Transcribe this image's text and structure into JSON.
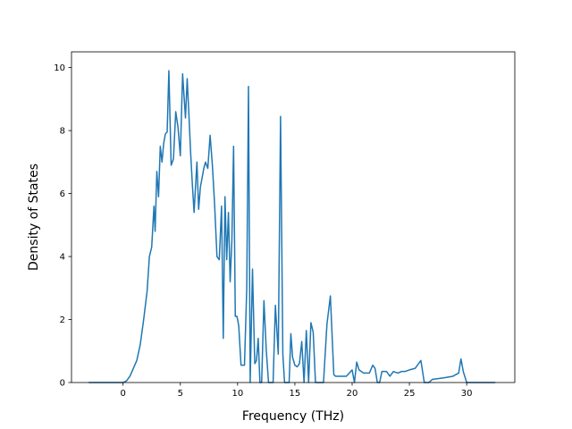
{
  "chart_data": {
    "type": "line",
    "title": "",
    "xlabel": "Frequency (THz)",
    "ylabel": "Density of States",
    "xlim": [
      -4.5,
      34.2
    ],
    "ylim": [
      0,
      10.5
    ],
    "xticks": [
      0,
      5,
      10,
      15,
      20,
      25,
      30
    ],
    "yticks": [
      0,
      2,
      4,
      6,
      8,
      10
    ],
    "grid": false,
    "legend": "none",
    "series": [
      {
        "color": "#1f77b4",
        "x": [
          -3.0,
          -2.0,
          -1.0,
          0.0,
          0.3,
          0.6,
          0.9,
          1.2,
          1.5,
          1.8,
          2.1,
          2.3,
          2.5,
          2.7,
          2.8,
          2.95,
          3.1,
          3.25,
          3.4,
          3.55,
          3.7,
          3.85,
          4.0,
          4.2,
          4.4,
          4.6,
          4.8,
          5.0,
          5.2,
          5.45,
          5.6,
          5.75,
          5.9,
          6.05,
          6.2,
          6.45,
          6.6,
          6.75,
          6.9,
          7.05,
          7.2,
          7.4,
          7.6,
          7.8,
          8.0,
          8.2,
          8.4,
          8.6,
          8.75,
          8.9,
          9.05,
          9.2,
          9.35,
          9.5,
          9.65,
          9.8,
          9.95,
          10.1,
          10.3,
          10.6,
          10.8,
          10.95,
          11.1,
          11.3,
          11.5,
          11.65,
          11.8,
          11.95,
          12.1,
          12.3,
          12.5,
          12.7,
          12.9,
          13.1,
          13.3,
          13.55,
          13.75,
          13.95,
          14.1,
          14.3,
          14.5,
          14.65,
          14.8,
          15.0,
          15.2,
          15.4,
          15.6,
          15.8,
          16.0,
          16.2,
          16.4,
          16.6,
          16.8,
          17.0,
          17.2,
          17.5,
          17.8,
          18.1,
          18.4,
          18.55,
          18.7,
          19.0,
          19.5,
          20.0,
          20.2,
          20.4,
          20.6,
          20.8,
          21.0,
          21.5,
          21.8,
          22.0,
          22.2,
          22.4,
          22.6,
          22.8,
          23.0,
          23.3,
          23.6,
          24.0,
          24.3,
          24.6,
          25.0,
          25.5,
          26.0,
          26.3,
          26.5,
          26.7,
          27.0,
          28.0,
          28.8,
          29.3,
          29.5,
          29.7,
          30.0,
          32.5
        ],
        "y": [
          0,
          0,
          0,
          0,
          0.05,
          0.2,
          0.45,
          0.7,
          1.2,
          2.0,
          2.9,
          4.0,
          4.3,
          5.6,
          4.8,
          6.7,
          5.9,
          7.5,
          7.0,
          7.6,
          7.9,
          7.95,
          9.9,
          6.9,
          7.1,
          8.6,
          8.1,
          7.2,
          9.8,
          8.4,
          9.65,
          8.5,
          7.3,
          6.3,
          5.4,
          7.0,
          5.5,
          6.2,
          6.5,
          6.8,
          7.0,
          6.8,
          7.85,
          6.9,
          5.6,
          4.0,
          3.9,
          5.6,
          1.4,
          5.9,
          3.9,
          5.4,
          3.2,
          4.5,
          7.5,
          2.1,
          2.1,
          1.8,
          0.55,
          0.55,
          3.0,
          9.4,
          0.0,
          3.6,
          0.6,
          0.7,
          1.4,
          0.0,
          0.0,
          2.6,
          1.05,
          0.0,
          0.0,
          0.0,
          2.45,
          0.9,
          8.45,
          0.9,
          0.0,
          0.0,
          0.0,
          1.55,
          0.8,
          0.55,
          0.5,
          0.6,
          1.3,
          0.0,
          1.65,
          0.0,
          1.9,
          1.6,
          0.0,
          0.0,
          0.0,
          0.0,
          1.85,
          2.75,
          0.25,
          0.2,
          0.2,
          0.2,
          0.2,
          0.4,
          0.0,
          0.65,
          0.4,
          0.35,
          0.3,
          0.3,
          0.55,
          0.45,
          0.0,
          0.0,
          0.35,
          0.35,
          0.35,
          0.2,
          0.35,
          0.3,
          0.35,
          0.35,
          0.4,
          0.45,
          0.7,
          0.0,
          0.0,
          0.0,
          0.1,
          0.15,
          0.2,
          0.3,
          0.75,
          0.35,
          0.0,
          0.0
        ]
      }
    ]
  }
}
